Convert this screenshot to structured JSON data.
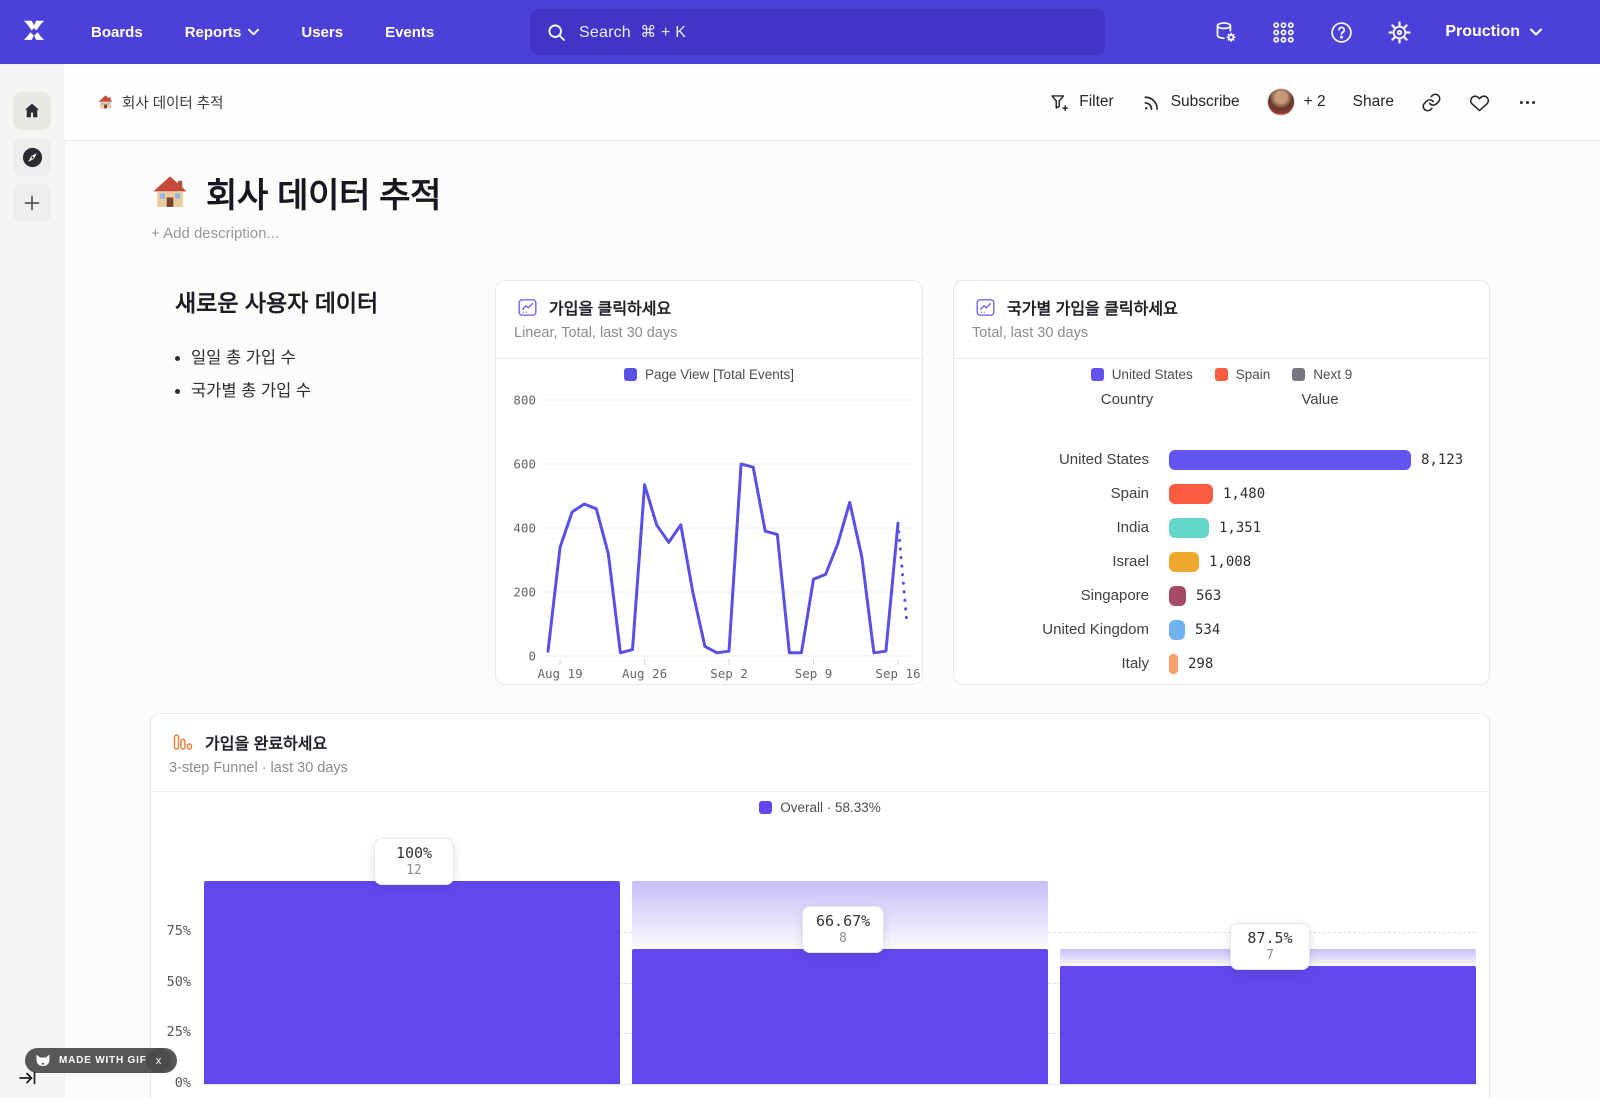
{
  "nav": {
    "brand": "Mixpanel",
    "items": [
      {
        "label": "Boards"
      },
      {
        "label": "Reports",
        "chevron": true
      },
      {
        "label": "Users"
      },
      {
        "label": "Events"
      }
    ],
    "search": {
      "label": "Search",
      "shortcut": "⌘ + K"
    },
    "project": "Prouction"
  },
  "board_header": {
    "breadcrumb": "회사 데이터 추적",
    "filter": "Filter",
    "subscribe": "Subscribe",
    "collaborators": "+ 2",
    "share": "Share"
  },
  "page": {
    "title": "회사 데이터 추적",
    "add_description": "+ Add description..."
  },
  "text_card": {
    "heading": "새로운 사용자 데이터",
    "bullets": [
      "일일 총 가입 수",
      "국가별 총 가입 수"
    ]
  },
  "footer": {
    "gifox": "MADE WITH GIFOX",
    "close": "x"
  },
  "chart_data": [
    {
      "type": "line",
      "title": "가입을 클릭하세요",
      "subtitle": "Linear, Total, last 30 days",
      "legend": [
        {
          "label": "Page View [Total Events]",
          "color": "#5b50e5"
        }
      ],
      "x_ticks": [
        "Aug 19",
        "Aug 26",
        "Sep 2",
        "Sep 9",
        "Sep 16"
      ],
      "tick_indices": [
        1,
        8,
        15,
        22,
        29
      ],
      "y_ticks": [
        0,
        200,
        400,
        600,
        800
      ],
      "ylim": [
        0,
        800
      ],
      "series": [
        {
          "name": "Page View [Total Events]",
          "color": "#5b50e5",
          "values": [
            15,
            340,
            450,
            475,
            460,
            320,
            10,
            20,
            535,
            410,
            355,
            410,
            200,
            30,
            10,
            15,
            600,
            590,
            390,
            380,
            10,
            10,
            240,
            255,
            350,
            480,
            310,
            10,
            15,
            415
          ]
        }
      ],
      "dotted_tail_end_value": 100
    },
    {
      "type": "bar",
      "title": "국가별 가입을 클릭하세요",
      "subtitle": "Total, last 30 days",
      "legend": [
        {
          "label": "United States",
          "color": "#6253f2"
        },
        {
          "label": "Spain",
          "color": "#fb5c40"
        },
        {
          "label": "Next 9",
          "color": "#77777f"
        }
      ],
      "columns": [
        "Country",
        "Value"
      ],
      "categories": [
        "United States",
        "Spain",
        "India",
        "Israel",
        "Singapore",
        "United Kingdom",
        "Italy"
      ],
      "values": [
        8123,
        1480,
        1351,
        1008,
        563,
        534,
        298
      ],
      "value_labels": [
        "8,123",
        "1,480",
        "1,351",
        "1,008",
        "563",
        "534",
        "298"
      ],
      "colors": [
        "#6253f2",
        "#fb5c40",
        "#63d6c6",
        "#f0a92f",
        "#a34b63",
        "#6eb2ef",
        "#f9a26e"
      ],
      "max_value": 8123,
      "clipped_row_color": "#6253f2"
    },
    {
      "type": "funnel",
      "title": "가입을 완료하세요",
      "subtitle": "3-step Funnel · last 30 days",
      "legend": [
        {
          "label": "Overall · 58.33%",
          "color": "#6148ee"
        }
      ],
      "y_ticks": [
        "75%",
        "50%",
        "25%",
        "0%"
      ],
      "y_tick_pcts": [
        75,
        50,
        25,
        0
      ],
      "bar_color": "#6148ee",
      "steps": [
        {
          "conversion": "100%",
          "count": "12",
          "overall_pct": 100,
          "prev_overall_pct": 100
        },
        {
          "conversion": "66.67%",
          "count": "8",
          "overall_pct": 66.67,
          "prev_overall_pct": 100
        },
        {
          "conversion": "87.5%",
          "count": "7",
          "overall_pct": 58.33,
          "prev_overall_pct": 66.67
        }
      ]
    }
  ]
}
